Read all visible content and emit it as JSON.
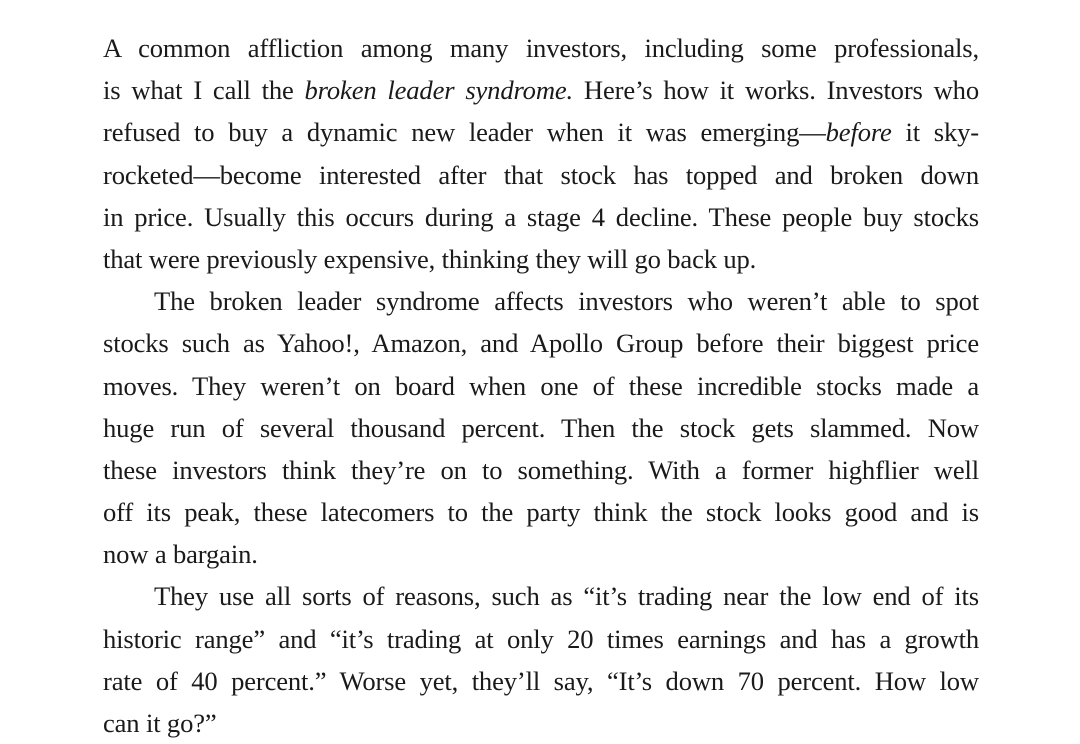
{
  "paragraphs": [
    {
      "indent": false,
      "lines": [
        {
          "segments": [
            {
              "text": "A common affliction among many investors, including some professionals,"
            }
          ]
        },
        {
          "segments": [
            {
              "text": "is what I call the "
            },
            {
              "text": "broken leader syndrome.",
              "italic": true
            },
            {
              "text": " Here’s how it works. Investors who"
            }
          ]
        },
        {
          "segments": [
            {
              "text": "refused to buy a dynamic new leader when it was emerging—"
            },
            {
              "text": "before",
              "italic": true
            },
            {
              "text": " it sky-"
            }
          ]
        },
        {
          "segments": [
            {
              "text": "rocketed—become interested after that stock has topped and broken down"
            }
          ]
        },
        {
          "segments": [
            {
              "text": "in price. Usually this occurs during a stage 4 decline. These people buy stocks"
            }
          ]
        },
        {
          "segments": [
            {
              "text": "that were previously expensive, thinking they will go back up."
            }
          ]
        }
      ]
    },
    {
      "indent": true,
      "lines": [
        {
          "segments": [
            {
              "text": "The broken leader syndrome affects investors who weren’t able to spot"
            }
          ]
        },
        {
          "segments": [
            {
              "text": "stocks such as Yahoo!, Amazon, and Apollo Group before their biggest price"
            }
          ]
        },
        {
          "segments": [
            {
              "text": "moves. They weren’t on board when one of these incredible stocks made a"
            }
          ]
        },
        {
          "segments": [
            {
              "text": "huge run of several thousand percent. Then the stock gets slammed. Now"
            }
          ]
        },
        {
          "segments": [
            {
              "text": "these investors think they’re on to something. With a former highflier well"
            }
          ]
        },
        {
          "segments": [
            {
              "text": "off its peak, these latecomers to the party think the stock looks good and is"
            }
          ]
        },
        {
          "segments": [
            {
              "text": "now a bargain."
            }
          ]
        }
      ]
    },
    {
      "indent": true,
      "lines": [
        {
          "segments": [
            {
              "text": "They use all sorts of reasons, such as “it’s trading near the low end of its"
            }
          ]
        },
        {
          "segments": [
            {
              "text": "historic range” and “it’s trading at only 20 times earnings and has a growth"
            }
          ]
        },
        {
          "segments": [
            {
              "text": "rate of 40 percent.” Worse yet, they’ll say, “It’s down 70 percent. How low"
            }
          ]
        },
        {
          "segments": [
            {
              "text": "can it go?”"
            }
          ]
        }
      ]
    }
  ]
}
